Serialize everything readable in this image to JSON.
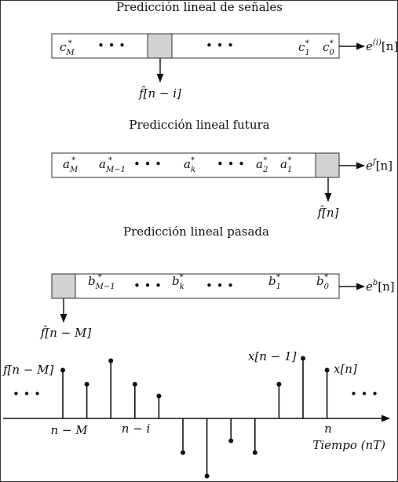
{
  "sections": {
    "signal": {
      "title": "Predicción lineal de señales",
      "coef_first": "c",
      "coef_first_sub": "M",
      "coef_1": "c",
      "coef_1_sub": "1",
      "coef_0": "c",
      "coef_0_sub": "0",
      "output": "e",
      "output_sup": "(i)",
      "output_arg": "[n]",
      "below": "f̂[n − i]"
    },
    "forward": {
      "title": "Predicción lineal futura",
      "coef_first": "a",
      "coef_first_sub": "M",
      "coef_second": "a",
      "coef_second_sub": "M−1",
      "coef_k": "a",
      "coef_k_sub": "k",
      "coef_2": "a",
      "coef_2_sub": "2",
      "coef_1": "a",
      "coef_1_sub": "1",
      "output": "e",
      "output_sup": "f",
      "output_arg": "[n]",
      "below": "f̂[n]"
    },
    "backward": {
      "title": "Predicción lineal pasada",
      "coef_second": "b",
      "coef_second_sub": "M−1",
      "coef_k": "b",
      "coef_k_sub": "k",
      "coef_1": "b",
      "coef_1_sub": "1",
      "coef_0": "b",
      "coef_0_sub": "0",
      "output": "e",
      "output_sup": "b",
      "output_arg": "[n]",
      "below": "f̂[n − M]"
    }
  },
  "conj_mark": "*",
  "dots": "• • •",
  "plot": {
    "label_left": "f[n − M]",
    "label_n_minus_1": "x[n − 1]",
    "label_n": "x[n]",
    "tick_n_minus_M": "n − M",
    "tick_n_minus_i": "n − i",
    "tick_n": "n",
    "axis_label": "Tiempo (nT)",
    "samples": [
      2.05,
      1.45,
      2.45,
      1.45,
      0.95,
      -1.45,
      -2.45,
      -0.95,
      -1.45,
      1.45,
      2.55,
      2.05
    ]
  }
}
